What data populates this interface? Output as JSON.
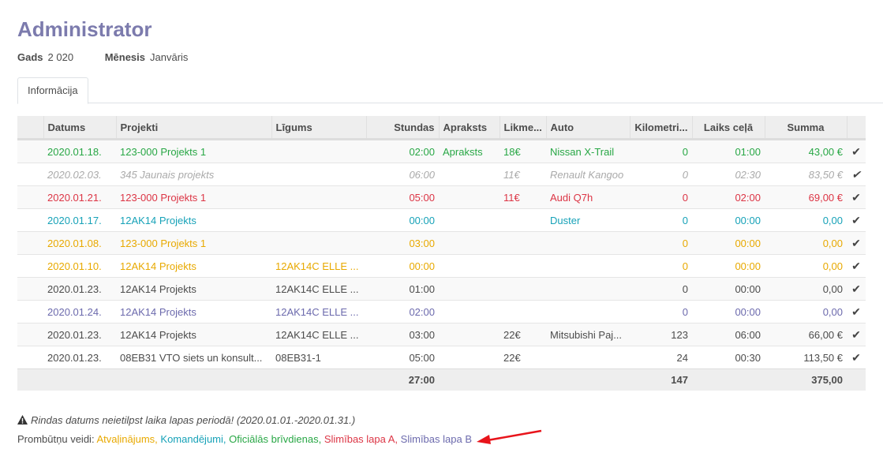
{
  "title": "Administrator",
  "meta": {
    "year_label": "Gads",
    "year": "2 020",
    "month_label": "Mēnesis",
    "month": "Janvāris"
  },
  "tab": "Informācija",
  "columns": [
    "",
    "Datums",
    "Projekti",
    "Līgums",
    "Stundas",
    "Apraksts",
    "Likme...",
    "Auto",
    "Kilometri...",
    "Laiks ceļā",
    "Summa",
    ""
  ],
  "rows": [
    {
      "style": "success",
      "date": "2020.01.18.",
      "project": "123-000 Projekts 1",
      "contract": "",
      "hours": "02:00",
      "desc": "Apraksts",
      "rate": "18€",
      "car": "Nissan X-Trail",
      "km": "0",
      "travel": "01:00",
      "sum": "43,00 €"
    },
    {
      "style": "muted",
      "date": "2020.02.03.",
      "project": "345 Jaunais projekts",
      "contract": "",
      "hours": "06:00",
      "desc": "",
      "rate": "11€",
      "car": "Renault Kangoo",
      "km": "0",
      "travel": "02:30",
      "sum": "83,50 €"
    },
    {
      "style": "danger",
      "date": "2020.01.21.",
      "project": "123-000 Projekts 1",
      "contract": "",
      "hours": "05:00",
      "desc": "",
      "rate": "11€",
      "car": "Audi Q7h",
      "km": "0",
      "travel": "02:00",
      "sum": "69,00 €"
    },
    {
      "style": "info",
      "date": "2020.01.17.",
      "project": "12AK14 Projekts",
      "contract": "",
      "hours": "00:00",
      "desc": "",
      "rate": "",
      "car": "Duster",
      "km": "0",
      "travel": "00:00",
      "sum": "0,00"
    },
    {
      "style": "warning",
      "date": "2020.01.08.",
      "project": "123-000 Projekts 1",
      "contract": "",
      "hours": "03:00",
      "desc": "",
      "rate": "",
      "car": "",
      "km": "0",
      "travel": "00:00",
      "sum": "0,00"
    },
    {
      "style": "warning",
      "date": "2020.01.10.",
      "project": "12AK14 Projekts",
      "contract": "12AK14C ELLE ...",
      "hours": "00:00",
      "desc": "",
      "rate": "",
      "car": "",
      "km": "0",
      "travel": "00:00",
      "sum": "0,00"
    },
    {
      "style": "default",
      "date": "2020.01.23.",
      "project": "12AK14 Projekts",
      "contract": "12AK14C ELLE ...",
      "hours": "01:00",
      "desc": "",
      "rate": "",
      "car": "",
      "km": "0",
      "travel": "00:00",
      "sum": "0,00"
    },
    {
      "style": "primary",
      "date": "2020.01.24.",
      "project": "12AK14 Projekts",
      "contract": "12AK14C ELLE ...",
      "hours": "02:00",
      "desc": "",
      "rate": "",
      "car": "",
      "km": "0",
      "travel": "00:00",
      "sum": "0,00"
    },
    {
      "style": "default",
      "date": "2020.01.23.",
      "project": "12AK14 Projekts",
      "contract": "12AK14C ELLE ...",
      "hours": "03:00",
      "desc": "",
      "rate": "22€",
      "car": "Mitsubishi Paj...",
      "km": "123",
      "travel": "06:00",
      "sum": "66,00 €"
    },
    {
      "style": "default",
      "date": "2020.01.23.",
      "project": "08EB31 VTO siets un konsult...",
      "contract": "08EB31-1",
      "hours": "05:00",
      "desc": "",
      "rate": "22€",
      "car": "",
      "km": "24",
      "travel": "00:30",
      "sum": "113,50 €"
    }
  ],
  "totals": {
    "hours": "27:00",
    "km": "147",
    "sum": "375,00"
  },
  "warning": "Rindas datums neietilpst laika lapas periodā! (2020.01.01.-2020.01.31.)",
  "legend": {
    "label": "Prombūtņu veidi:",
    "items": [
      {
        "text": "Atvaļinājums,",
        "style": "warning"
      },
      {
        "text": "Komandējumi,",
        "style": "info"
      },
      {
        "text": "Oficiālās brīvdienas,",
        "style": "success"
      },
      {
        "text": "Slimības lapa A,",
        "style": "danger"
      },
      {
        "text": "Slimības lapa B",
        "style": "primary"
      }
    ]
  },
  "colors": {
    "title": "#7c7bad",
    "success": "#28a745",
    "danger": "#dc3545",
    "info": "#17a2b8",
    "warning": "#e8a900",
    "primary": "#6c6aad",
    "arrow": "#e8141b"
  },
  "icons": {
    "row_action": "check-icon",
    "warning": "warning-triangle-icon",
    "annotation": "red-arrow"
  }
}
